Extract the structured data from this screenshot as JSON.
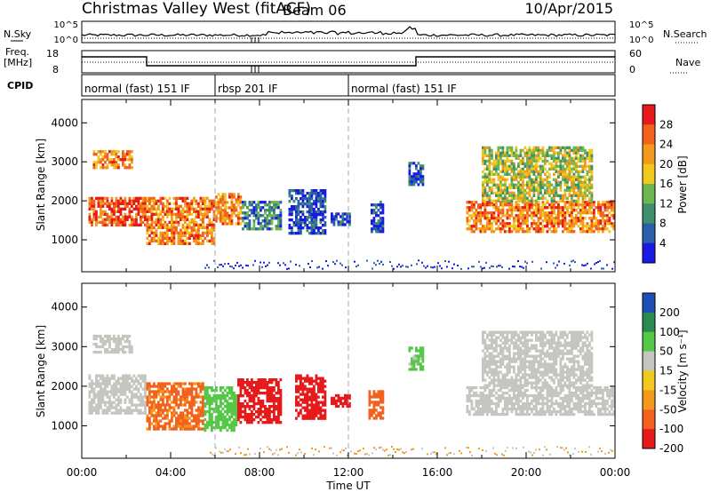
{
  "header": {
    "title": "Christmas Valley West (fitACF)",
    "beam": "Beam 06",
    "date": "10/Apr/2015"
  },
  "summary": {
    "nsky_label": "N.Sky",
    "freq_label_line1": "Freq.",
    "freq_label_line2": "[MHz]",
    "cpid_label": "CPID",
    "nsearch_label": "N.Search",
    "nave_label": "Nave",
    "nsky_ticks": [
      "10^5",
      "10^0"
    ],
    "nsearch_ticks": [
      "10^5",
      "10^0"
    ],
    "freq_ticks": [
      "18",
      "8"
    ],
    "nave_ticks": [
      "60",
      "0"
    ],
    "cpid_modes": [
      {
        "label": "normal (fast) 151 IF",
        "start": 0,
        "end": 6
      },
      {
        "label": "rbsp 201 IF",
        "start": 6,
        "end": 12
      },
      {
        "label": "normal (fast) 151 IF",
        "start": 12,
        "end": 24
      }
    ]
  },
  "panels": {
    "power": {
      "ylabel": "Slant Range [km]",
      "cbar_label": "Power [dB]",
      "cbar_ticks": [
        "28",
        "24",
        "20",
        "16",
        "12",
        "8",
        "4"
      ]
    },
    "velocity": {
      "ylabel": "Slant Range [km]",
      "cbar_label": "Velocity [m s⁻¹]",
      "cbar_ticks": [
        "200",
        "100",
        "50",
        "15",
        "-15",
        "-50",
        "-100",
        "-200"
      ]
    }
  },
  "xaxis": {
    "label": "Time UT",
    "ticks": [
      "00:00",
      "04:00",
      "08:00",
      "12:00",
      "16:00",
      "20:00",
      "00:00"
    ]
  },
  "colors": {
    "power_scale": [
      "#1a1ae6",
      "#2b5fa8",
      "#3f8f6a",
      "#6db650",
      "#f2c81e",
      "#f29a1e",
      "#f2621e",
      "#e61a1a"
    ],
    "velocity_scale": [
      "#e61a1a",
      "#f2621e",
      "#f29a1e",
      "#f2c81e",
      "#c6c6c0",
      "#55c848",
      "#2b8a4e",
      "#1f4fb4"
    ],
    "grey": "#c6c6c0"
  },
  "chart_data": [
    {
      "type": "heatmap",
      "title": "Power",
      "xlabel": "Time UT",
      "ylabel": "Slant Range [km]",
      "xlim": [
        0,
        24
      ],
      "ylim": [
        180,
        4600
      ],
      "yticks": [
        1000,
        2000,
        3000,
        4000
      ],
      "colorbar": {
        "label": "Power [dB]",
        "ticks": [
          4,
          8,
          12,
          16,
          20,
          24,
          28
        ]
      },
      "regions": [
        {
          "t0": 0.3,
          "t1": 2.9,
          "r0": 1350,
          "r1": 2100,
          "value": 24
        },
        {
          "t0": 0.5,
          "t1": 2.3,
          "r0": 2850,
          "r1": 3300,
          "value": 22
        },
        {
          "t0": 2.9,
          "t1": 6.0,
          "r0": 900,
          "r1": 2100,
          "value": 22
        },
        {
          "t0": 6.0,
          "t1": 7.2,
          "r0": 1400,
          "r1": 2200,
          "value": 21
        },
        {
          "t0": 7.2,
          "t1": 9.0,
          "r0": 1300,
          "r1": 2000,
          "value": 10
        },
        {
          "t0": 9.3,
          "t1": 11.0,
          "r0": 1200,
          "r1": 2300,
          "value": 7
        },
        {
          "t0": 11.2,
          "t1": 12.0,
          "r0": 1400,
          "r1": 1700,
          "value": 7
        },
        {
          "t0": 13.0,
          "t1": 13.6,
          "r0": 1200,
          "r1": 2000,
          "value": 7
        },
        {
          "t0": 14.7,
          "t1": 15.3,
          "r0": 2400,
          "r1": 3000,
          "value": 8
        },
        {
          "t0": 17.3,
          "t1": 24.0,
          "r0": 1200,
          "r1": 2000,
          "value": 22
        },
        {
          "t0": 18.0,
          "t1": 23.0,
          "r0": 2000,
          "r1": 3400,
          "value": 16
        }
      ]
    },
    {
      "type": "heatmap",
      "title": "Velocity",
      "xlabel": "Time UT",
      "ylabel": "Slant Range [km]",
      "xlim": [
        0,
        24
      ],
      "ylim": [
        180,
        4600
      ],
      "yticks": [
        1000,
        2000,
        3000,
        4000
      ],
      "colorbar": {
        "label": "Velocity [m s⁻¹]",
        "ticks": [
          -200,
          -100,
          -50,
          -15,
          15,
          50,
          100,
          200
        ]
      },
      "regions": [
        {
          "t0": 0.3,
          "t1": 2.9,
          "r0": 1350,
          "r1": 2300,
          "value": 0
        },
        {
          "t0": 0.5,
          "t1": 2.3,
          "r0": 2850,
          "r1": 3300,
          "value": 0
        },
        {
          "t0": 2.9,
          "t1": 5.5,
          "r0": 900,
          "r1": 2100,
          "value": -60
        },
        {
          "t0": 5.5,
          "t1": 7.0,
          "r0": 900,
          "r1": 2000,
          "value": 70
        },
        {
          "t0": 7.0,
          "t1": 9.0,
          "r0": 1100,
          "r1": 2200,
          "value": -180
        },
        {
          "t0": 9.6,
          "t1": 11.0,
          "r0": 1200,
          "r1": 2300,
          "value": -200
        },
        {
          "t0": 11.2,
          "t1": 12.0,
          "r0": 1500,
          "r1": 1800,
          "value": -200
        },
        {
          "t0": 12.9,
          "t1": 13.6,
          "r0": 1200,
          "r1": 1900,
          "value": -70
        },
        {
          "t0": 14.7,
          "t1": 15.3,
          "r0": 2400,
          "r1": 3000,
          "value": 60
        },
        {
          "t0": 17.3,
          "t1": 24.0,
          "r0": 1300,
          "r1": 2000,
          "value": 0
        },
        {
          "t0": 18.0,
          "t1": 23.0,
          "r0": 2000,
          "r1": 3400,
          "value": 0
        }
      ]
    }
  ]
}
